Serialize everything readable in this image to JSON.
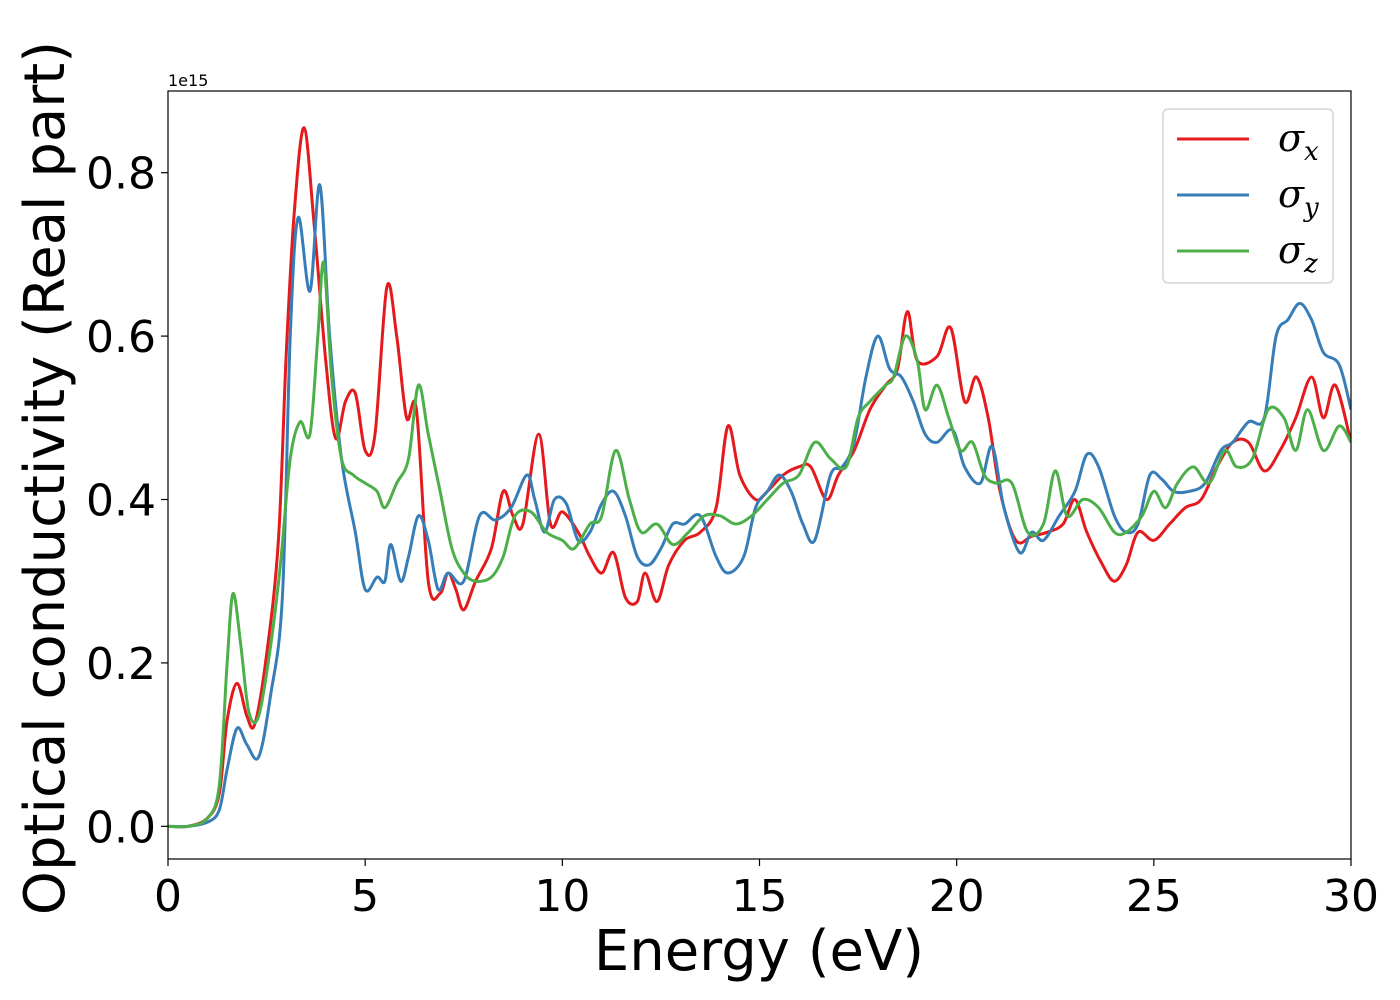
{
  "chart_data": {
    "type": "line",
    "xlabel": "Energy (eV)",
    "ylabel": "Optical conductivity (Real part)",
    "y_offset_label": "1e15",
    "xlim": [
      0,
      30
    ],
    "ylim": [
      -0.04,
      0.9
    ],
    "x_ticks": [
      0,
      5,
      10,
      15,
      20,
      25,
      30
    ],
    "x_tick_labels": [
      "0",
      "5",
      "10",
      "15",
      "20",
      "25",
      "30"
    ],
    "y_ticks": [
      0.0,
      0.2,
      0.4,
      0.6,
      0.8
    ],
    "y_tick_labels": [
      "0.0",
      "0.2",
      "0.4",
      "0.6",
      "0.8"
    ],
    "grid": false,
    "legend_position": "top-right",
    "series": [
      {
        "name": "σx",
        "symbol": "σ",
        "subscript": "x",
        "color": "#e41a1c",
        "points": [
          [
            0,
            0.0
          ],
          [
            0.5,
            0.0
          ],
          [
            1.0,
            0.01
          ],
          [
            1.3,
            0.04
          ],
          [
            1.5,
            0.13
          ],
          [
            1.75,
            0.175
          ],
          [
            2.0,
            0.135
          ],
          [
            2.2,
            0.125
          ],
          [
            2.5,
            0.21
          ],
          [
            2.8,
            0.35
          ],
          [
            3.0,
            0.58
          ],
          [
            3.2,
            0.75
          ],
          [
            3.45,
            0.855
          ],
          [
            3.7,
            0.74
          ],
          [
            4.0,
            0.57
          ],
          [
            4.25,
            0.475
          ],
          [
            4.5,
            0.52
          ],
          [
            4.75,
            0.53
          ],
          [
            5.0,
            0.46
          ],
          [
            5.25,
            0.48
          ],
          [
            5.55,
            0.66
          ],
          [
            5.8,
            0.6
          ],
          [
            6.05,
            0.5
          ],
          [
            6.3,
            0.51
          ],
          [
            6.6,
            0.3
          ],
          [
            6.9,
            0.285
          ],
          [
            7.1,
            0.31
          ],
          [
            7.3,
            0.29
          ],
          [
            7.5,
            0.265
          ],
          [
            7.8,
            0.3
          ],
          [
            8.2,
            0.34
          ],
          [
            8.5,
            0.41
          ],
          [
            8.75,
            0.38
          ],
          [
            9.0,
            0.37
          ],
          [
            9.4,
            0.48
          ],
          [
            9.7,
            0.37
          ],
          [
            10.0,
            0.385
          ],
          [
            10.4,
            0.36
          ],
          [
            10.7,
            0.33
          ],
          [
            11.0,
            0.31
          ],
          [
            11.3,
            0.335
          ],
          [
            11.6,
            0.28
          ],
          [
            11.9,
            0.275
          ],
          [
            12.1,
            0.31
          ],
          [
            12.4,
            0.275
          ],
          [
            12.7,
            0.32
          ],
          [
            13.1,
            0.35
          ],
          [
            13.5,
            0.36
          ],
          [
            13.9,
            0.39
          ],
          [
            14.2,
            0.49
          ],
          [
            14.5,
            0.43
          ],
          [
            14.9,
            0.4
          ],
          [
            15.2,
            0.41
          ],
          [
            15.6,
            0.43
          ],
          [
            16.0,
            0.44
          ],
          [
            16.3,
            0.44
          ],
          [
            16.7,
            0.4
          ],
          [
            17.0,
            0.43
          ],
          [
            17.4,
            0.46
          ],
          [
            17.8,
            0.51
          ],
          [
            18.2,
            0.54
          ],
          [
            18.5,
            0.56
          ],
          [
            18.75,
            0.63
          ],
          [
            19.0,
            0.57
          ],
          [
            19.5,
            0.575
          ],
          [
            19.85,
            0.61
          ],
          [
            20.2,
            0.52
          ],
          [
            20.5,
            0.55
          ],
          [
            20.8,
            0.5
          ],
          [
            21.1,
            0.41
          ],
          [
            21.5,
            0.35
          ],
          [
            21.9,
            0.355
          ],
          [
            22.3,
            0.36
          ],
          [
            22.7,
            0.37
          ],
          [
            23.0,
            0.4
          ],
          [
            23.3,
            0.36
          ],
          [
            23.7,
            0.32
          ],
          [
            24.0,
            0.3
          ],
          [
            24.3,
            0.32
          ],
          [
            24.6,
            0.36
          ],
          [
            25.0,
            0.35
          ],
          [
            25.4,
            0.37
          ],
          [
            25.8,
            0.39
          ],
          [
            26.2,
            0.4
          ],
          [
            26.6,
            0.44
          ],
          [
            27.0,
            0.47
          ],
          [
            27.4,
            0.47
          ],
          [
            27.8,
            0.435
          ],
          [
            28.2,
            0.46
          ],
          [
            28.6,
            0.5
          ],
          [
            29.0,
            0.55
          ],
          [
            29.3,
            0.5
          ],
          [
            29.6,
            0.54
          ],
          [
            30.0,
            0.47
          ]
        ]
      },
      {
        "name": "σy",
        "symbol": "σ",
        "subscript": "y",
        "color": "#377eb8",
        "points": [
          [
            0,
            0.0
          ],
          [
            0.5,
            0.0
          ],
          [
            1.0,
            0.005
          ],
          [
            1.3,
            0.02
          ],
          [
            1.5,
            0.07
          ],
          [
            1.75,
            0.12
          ],
          [
            2.0,
            0.1
          ],
          [
            2.3,
            0.085
          ],
          [
            2.6,
            0.16
          ],
          [
            2.9,
            0.28
          ],
          [
            3.1,
            0.6
          ],
          [
            3.3,
            0.745
          ],
          [
            3.6,
            0.655
          ],
          [
            3.85,
            0.785
          ],
          [
            4.1,
            0.6
          ],
          [
            4.4,
            0.45
          ],
          [
            4.75,
            0.36
          ],
          [
            5.0,
            0.29
          ],
          [
            5.3,
            0.305
          ],
          [
            5.5,
            0.3
          ],
          [
            5.65,
            0.345
          ],
          [
            5.9,
            0.3
          ],
          [
            6.1,
            0.33
          ],
          [
            6.35,
            0.38
          ],
          [
            6.6,
            0.35
          ],
          [
            6.85,
            0.29
          ],
          [
            7.1,
            0.31
          ],
          [
            7.5,
            0.3
          ],
          [
            7.9,
            0.38
          ],
          [
            8.3,
            0.375
          ],
          [
            8.7,
            0.39
          ],
          [
            9.1,
            0.43
          ],
          [
            9.3,
            0.4
          ],
          [
            9.55,
            0.36
          ],
          [
            9.8,
            0.4
          ],
          [
            10.1,
            0.395
          ],
          [
            10.4,
            0.35
          ],
          [
            10.7,
            0.36
          ],
          [
            11.0,
            0.395
          ],
          [
            11.3,
            0.41
          ],
          [
            11.6,
            0.38
          ],
          [
            11.9,
            0.33
          ],
          [
            12.2,
            0.32
          ],
          [
            12.5,
            0.34
          ],
          [
            12.8,
            0.37
          ],
          [
            13.1,
            0.37
          ],
          [
            13.5,
            0.38
          ],
          [
            13.9,
            0.33
          ],
          [
            14.2,
            0.31
          ],
          [
            14.6,
            0.33
          ],
          [
            14.9,
            0.39
          ],
          [
            15.2,
            0.41
          ],
          [
            15.5,
            0.43
          ],
          [
            15.8,
            0.41
          ],
          [
            16.1,
            0.37
          ],
          [
            16.4,
            0.35
          ],
          [
            16.8,
            0.43
          ],
          [
            17.1,
            0.44
          ],
          [
            17.4,
            0.47
          ],
          [
            17.7,
            0.55
          ],
          [
            18.0,
            0.6
          ],
          [
            18.3,
            0.56
          ],
          [
            18.6,
            0.55
          ],
          [
            18.9,
            0.52
          ],
          [
            19.2,
            0.48
          ],
          [
            19.5,
            0.47
          ],
          [
            19.9,
            0.485
          ],
          [
            20.2,
            0.44
          ],
          [
            20.6,
            0.42
          ],
          [
            20.9,
            0.465
          ],
          [
            21.2,
            0.39
          ],
          [
            21.6,
            0.335
          ],
          [
            21.9,
            0.36
          ],
          [
            22.2,
            0.35
          ],
          [
            22.6,
            0.38
          ],
          [
            23.0,
            0.41
          ],
          [
            23.3,
            0.455
          ],
          [
            23.6,
            0.44
          ],
          [
            24.0,
            0.38
          ],
          [
            24.3,
            0.36
          ],
          [
            24.6,
            0.37
          ],
          [
            24.9,
            0.43
          ],
          [
            25.2,
            0.425
          ],
          [
            25.5,
            0.41
          ],
          [
            25.9,
            0.41
          ],
          [
            26.3,
            0.42
          ],
          [
            26.7,
            0.46
          ],
          [
            27.0,
            0.47
          ],
          [
            27.4,
            0.495
          ],
          [
            27.8,
            0.5
          ],
          [
            28.1,
            0.6
          ],
          [
            28.4,
            0.62
          ],
          [
            28.7,
            0.64
          ],
          [
            29.0,
            0.62
          ],
          [
            29.3,
            0.58
          ],
          [
            29.7,
            0.565
          ],
          [
            30.0,
            0.51
          ]
        ]
      },
      {
        "name": "σz",
        "symbol": "σ",
        "subscript": "z",
        "color": "#4daf4a",
        "points": [
          [
            0,
            0.0
          ],
          [
            0.5,
            0.0
          ],
          [
            1.0,
            0.01
          ],
          [
            1.3,
            0.05
          ],
          [
            1.5,
            0.2
          ],
          [
            1.65,
            0.285
          ],
          [
            1.85,
            0.22
          ],
          [
            2.05,
            0.14
          ],
          [
            2.3,
            0.135
          ],
          [
            2.6,
            0.22
          ],
          [
            2.85,
            0.32
          ],
          [
            3.1,
            0.45
          ],
          [
            3.35,
            0.495
          ],
          [
            3.6,
            0.48
          ],
          [
            3.8,
            0.6
          ],
          [
            3.95,
            0.69
          ],
          [
            4.15,
            0.55
          ],
          [
            4.4,
            0.45
          ],
          [
            4.7,
            0.43
          ],
          [
            5.0,
            0.42
          ],
          [
            5.3,
            0.41
          ],
          [
            5.5,
            0.39
          ],
          [
            5.8,
            0.42
          ],
          [
            6.1,
            0.45
          ],
          [
            6.35,
            0.54
          ],
          [
            6.6,
            0.48
          ],
          [
            6.9,
            0.41
          ],
          [
            7.2,
            0.34
          ],
          [
            7.5,
            0.31
          ],
          [
            7.8,
            0.3
          ],
          [
            8.2,
            0.305
          ],
          [
            8.5,
            0.33
          ],
          [
            8.8,
            0.38
          ],
          [
            9.2,
            0.385
          ],
          [
            9.6,
            0.36
          ],
          [
            10.0,
            0.35
          ],
          [
            10.3,
            0.34
          ],
          [
            10.7,
            0.37
          ],
          [
            11.0,
            0.38
          ],
          [
            11.35,
            0.46
          ],
          [
            11.7,
            0.4
          ],
          [
            12.0,
            0.36
          ],
          [
            12.4,
            0.37
          ],
          [
            12.8,
            0.345
          ],
          [
            13.2,
            0.36
          ],
          [
            13.6,
            0.38
          ],
          [
            14.0,
            0.38
          ],
          [
            14.4,
            0.37
          ],
          [
            14.8,
            0.38
          ],
          [
            15.2,
            0.4
          ],
          [
            15.6,
            0.42
          ],
          [
            16.0,
            0.43
          ],
          [
            16.4,
            0.47
          ],
          [
            16.8,
            0.45
          ],
          [
            17.2,
            0.44
          ],
          [
            17.5,
            0.5
          ],
          [
            17.8,
            0.52
          ],
          [
            18.2,
            0.54
          ],
          [
            18.4,
            0.55
          ],
          [
            18.7,
            0.6
          ],
          [
            19.0,
            0.57
          ],
          [
            19.2,
            0.51
          ],
          [
            19.5,
            0.54
          ],
          [
            19.8,
            0.5
          ],
          [
            20.1,
            0.46
          ],
          [
            20.4,
            0.47
          ],
          [
            20.7,
            0.43
          ],
          [
            21.0,
            0.42
          ],
          [
            21.4,
            0.42
          ],
          [
            21.8,
            0.36
          ],
          [
            22.2,
            0.37
          ],
          [
            22.5,
            0.435
          ],
          [
            22.8,
            0.38
          ],
          [
            23.2,
            0.4
          ],
          [
            23.6,
            0.39
          ],
          [
            24.0,
            0.36
          ],
          [
            24.3,
            0.36
          ],
          [
            24.7,
            0.38
          ],
          [
            25.0,
            0.41
          ],
          [
            25.3,
            0.39
          ],
          [
            25.6,
            0.42
          ],
          [
            26.0,
            0.44
          ],
          [
            26.4,
            0.42
          ],
          [
            26.8,
            0.46
          ],
          [
            27.1,
            0.44
          ],
          [
            27.5,
            0.45
          ],
          [
            27.9,
            0.51
          ],
          [
            28.3,
            0.5
          ],
          [
            28.6,
            0.46
          ],
          [
            28.9,
            0.51
          ],
          [
            29.3,
            0.46
          ],
          [
            29.7,
            0.49
          ],
          [
            30.0,
            0.47
          ]
        ]
      }
    ]
  }
}
